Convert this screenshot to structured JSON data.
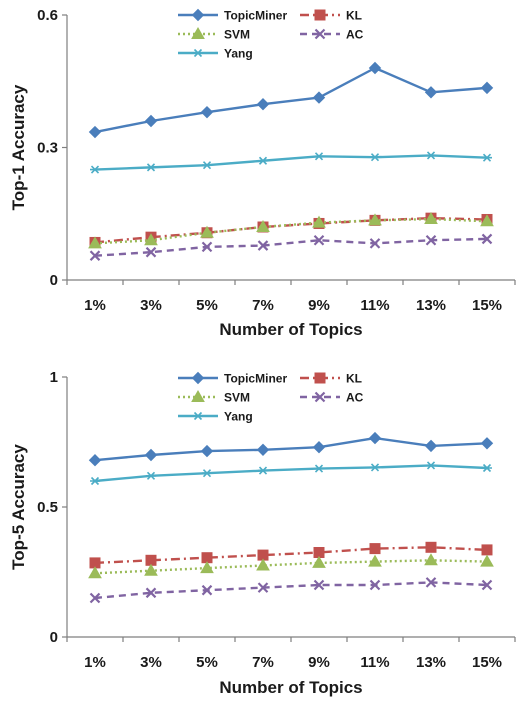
{
  "chart_data": [
    {
      "type": "line",
      "xlabel": "Number of Topics",
      "ylabel": "Top-1 Accuracy",
      "ylim": [
        0,
        0.6
      ],
      "yticks": [
        "0",
        "0.3",
        "0.6"
      ],
      "ytick_values": [
        0,
        0.3,
        0.6
      ],
      "grid": false,
      "legend_position": "top",
      "categories": [
        "1%",
        "3%",
        "5%",
        "7%",
        "9%",
        "11%",
        "13%",
        "15%"
      ],
      "series": [
        {
          "name": "TopicMiner",
          "color": "#4a7ebb",
          "line": "solid",
          "marker": "diamond",
          "values": [
            0.335,
            0.36,
            0.38,
            0.398,
            0.413,
            0.48,
            0.425,
            0.435
          ]
        },
        {
          "name": "KL",
          "color": "#c0504d",
          "line": "dashdot",
          "marker": "square",
          "values": [
            0.085,
            0.097,
            0.107,
            0.12,
            0.128,
            0.135,
            0.14,
            0.137
          ]
        },
        {
          "name": "SVM",
          "color": "#9bbb59",
          "line": "dotted",
          "marker": "triangle",
          "values": [
            0.083,
            0.09,
            0.107,
            0.12,
            0.13,
            0.135,
            0.138,
            0.133
          ]
        },
        {
          "name": "AC",
          "color": "#8064a2",
          "line": "dashed",
          "marker": "x",
          "values": [
            0.055,
            0.063,
            0.075,
            0.078,
            0.09,
            0.083,
            0.09,
            0.093
          ]
        },
        {
          "name": "Yang",
          "color": "#4bacc6",
          "line": "solid",
          "marker": "asterisk",
          "values": [
            0.25,
            0.255,
            0.26,
            0.27,
            0.28,
            0.278,
            0.282,
            0.277
          ]
        }
      ]
    },
    {
      "type": "line",
      "xlabel": "Number of Topics",
      "ylabel": "Top-5 Accuracy",
      "ylim": [
        0,
        1
      ],
      "yticks": [
        "0",
        "0.5",
        "1"
      ],
      "ytick_values": [
        0,
        0.5,
        1
      ],
      "grid": false,
      "legend_position": "top",
      "categories": [
        "1%",
        "3%",
        "5%",
        "7%",
        "9%",
        "11%",
        "13%",
        "15%"
      ],
      "series": [
        {
          "name": "TopicMiner",
          "color": "#4a7ebb",
          "line": "solid",
          "marker": "diamond",
          "values": [
            0.68,
            0.7,
            0.715,
            0.72,
            0.73,
            0.765,
            0.735,
            0.745
          ]
        },
        {
          "name": "KL",
          "color": "#c0504d",
          "line": "dashdot",
          "marker": "square",
          "values": [
            0.285,
            0.295,
            0.305,
            0.315,
            0.325,
            0.34,
            0.345,
            0.335
          ]
        },
        {
          "name": "SVM",
          "color": "#9bbb59",
          "line": "dotted",
          "marker": "triangle",
          "values": [
            0.245,
            0.255,
            0.265,
            0.275,
            0.285,
            0.29,
            0.295,
            0.29
          ]
        },
        {
          "name": "AC",
          "color": "#8064a2",
          "line": "dashed",
          "marker": "x",
          "values": [
            0.15,
            0.17,
            0.18,
            0.19,
            0.2,
            0.2,
            0.21,
            0.2
          ]
        },
        {
          "name": "Yang",
          "color": "#4bacc6",
          "line": "solid",
          "marker": "asterisk",
          "values": [
            0.6,
            0.62,
            0.63,
            0.64,
            0.648,
            0.652,
            0.66,
            0.65
          ]
        }
      ]
    }
  ]
}
